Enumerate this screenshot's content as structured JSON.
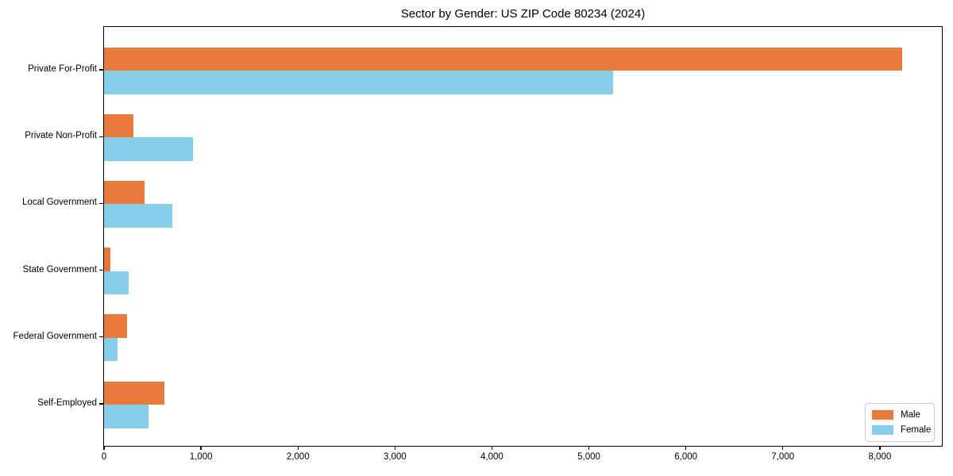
{
  "figure": {
    "title": "Sector by Gender: US ZIP Code 80234 (2024)"
  },
  "chart_data": {
    "type": "bar",
    "orientation": "horizontal",
    "title": "Sector by Gender: US ZIP Code 80234 (2024)",
    "categories": [
      "Private For-Profit",
      "Private Non-Profit",
      "Local Government",
      "State Government",
      "Federal Government",
      "Self-Employed"
    ],
    "series": [
      {
        "name": "Male",
        "color": "#e87a3b",
        "values": [
          8230,
          305,
          420,
          65,
          235,
          625
        ]
      },
      {
        "name": "Female",
        "color": "#87ceeb",
        "values": [
          5250,
          920,
          700,
          250,
          135,
          460
        ]
      }
    ],
    "xlabel": "",
    "ylabel": "",
    "xlim": [
      0,
      8640
    ],
    "xticks": [
      {
        "value": 0,
        "label": "0"
      },
      {
        "value": 1000,
        "label": "1,000"
      },
      {
        "value": 2000,
        "label": "2,000"
      },
      {
        "value": 3000,
        "label": "3,000"
      },
      {
        "value": 4000,
        "label": "4,000"
      },
      {
        "value": 5000,
        "label": "5,000"
      },
      {
        "value": 6000,
        "label": "6,000"
      },
      {
        "value": 7000,
        "label": "7,000"
      },
      {
        "value": 8000,
        "label": "8,000"
      }
    ],
    "grid": false,
    "legend": {
      "position": "lower right",
      "entries": [
        "Male",
        "Female"
      ]
    }
  }
}
